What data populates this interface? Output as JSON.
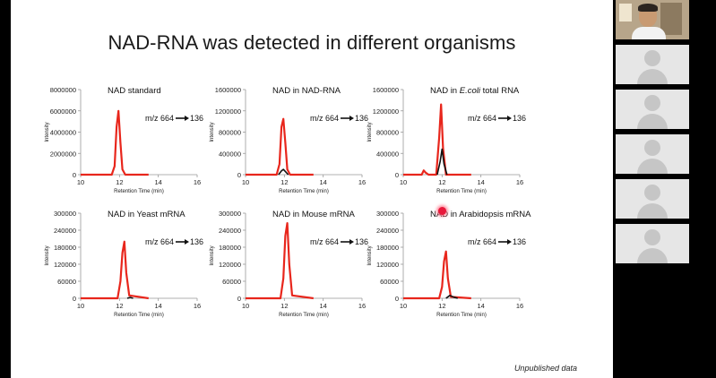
{
  "slide": {
    "title": "NAD-RNA was detected in different organisms",
    "footnote": "Unpublished data",
    "transition_label": "m/z 664",
    "transition_product": "136",
    "x_axis_label": "Retention Time (min)",
    "y_axis_label": "Intensity"
  },
  "chart_data": [
    {
      "type": "line",
      "title": "NAD standard",
      "xlabel": "Retention Time (min)",
      "ylabel": "Intensity",
      "xlim": [
        10,
        16
      ],
      "x_ticks": [
        "10",
        "12",
        "14",
        "16"
      ],
      "ylim": [
        0,
        8000000
      ],
      "y_ticks": [
        "0",
        "2000000",
        "4000000",
        "6000000",
        "8000000"
      ],
      "series": [
        {
          "name": "NAD (red)",
          "color": "#e8261c",
          "x": [
            10.0,
            11.6,
            11.75,
            11.85,
            11.95,
            12.05,
            12.15,
            12.3,
            13.5
          ],
          "y": [
            0,
            0,
            800000,
            4500000,
            6000000,
            3000000,
            500000,
            0,
            0
          ]
        }
      ]
    },
    {
      "type": "line",
      "title": "NAD in NAD-RNA",
      "xlabel": "Retention Time (min)",
      "ylabel": "Intensity",
      "xlim": [
        10,
        16
      ],
      "x_ticks": [
        "10",
        "12",
        "14",
        "16"
      ],
      "ylim": [
        0,
        1600000
      ],
      "y_ticks": [
        "0",
        "400000",
        "800000",
        "1200000",
        "1600000"
      ],
      "series": [
        {
          "name": "NAD (red)",
          "color": "#e8261c",
          "x": [
            10.0,
            11.6,
            11.75,
            11.85,
            11.95,
            12.05,
            12.15,
            12.3,
            13.5
          ],
          "y": [
            0,
            0,
            200000,
            900000,
            1050000,
            600000,
            100000,
            0,
            0
          ]
        },
        {
          "name": "Background (black)",
          "color": "#111111",
          "x": [
            11.7,
            11.85,
            11.95,
            12.05,
            12.2
          ],
          "y": [
            0,
            70000,
            100000,
            60000,
            0
          ]
        }
      ]
    },
    {
      "type": "line",
      "title_prefix": "NAD in ",
      "title_italic": "E.coli",
      "title_suffix": " total RNA",
      "xlabel": "Retention Time (min)",
      "ylabel": "Intensity",
      "xlim": [
        10,
        16
      ],
      "x_ticks": [
        "10",
        "12",
        "14",
        "16"
      ],
      "ylim": [
        0,
        1600000
      ],
      "y_ticks": [
        "0",
        "400000",
        "800000",
        "1200000",
        "1600000"
      ],
      "series": [
        {
          "name": "NAD (red)",
          "color": "#e8261c",
          "x": [
            10.0,
            10.95,
            11.05,
            11.15,
            11.3,
            11.7,
            11.85,
            11.95,
            12.05,
            12.2,
            13.5
          ],
          "y": [
            0,
            0,
            80000,
            40000,
            0,
            0,
            700000,
            1320000,
            500000,
            0,
            0
          ]
        },
        {
          "name": "Background (black)",
          "color": "#111111",
          "x": [
            11.75,
            11.9,
            12.0,
            12.1,
            12.25
          ],
          "y": [
            0,
            250000,
            480000,
            200000,
            0
          ]
        }
      ]
    },
    {
      "type": "line",
      "title": "NAD in Yeast mRNA",
      "xlabel": "Retention Time (min)",
      "ylabel": "Intensity",
      "xlim": [
        10,
        16
      ],
      "x_ticks": [
        "10",
        "12",
        "14",
        "16"
      ],
      "ylim": [
        0,
        300000
      ],
      "y_ticks": [
        "0",
        "60000",
        "120000",
        "180000",
        "240000",
        "300000"
      ],
      "series": [
        {
          "name": "NAD (red)",
          "color": "#e8261c",
          "x": [
            10.0,
            11.9,
            12.05,
            12.15,
            12.25,
            12.35,
            12.5,
            13.5
          ],
          "y": [
            0,
            0,
            60000,
            160000,
            200000,
            90000,
            10000,
            0
          ]
        },
        {
          "name": "Background (black)",
          "color": "#111111",
          "x": [
            12.4,
            12.55,
            12.7
          ],
          "y": [
            0,
            3000,
            0
          ]
        }
      ]
    },
    {
      "type": "line",
      "title": "NAD in Mouse mRNA",
      "xlabel": "Retention Time (min)",
      "ylabel": "Intensity",
      "xlim": [
        10,
        16
      ],
      "x_ticks": [
        "10",
        "12",
        "14",
        "16"
      ],
      "ylim": [
        0,
        300000
      ],
      "y_ticks": [
        "0",
        "60000",
        "120000",
        "180000",
        "240000",
        "300000"
      ],
      "series": [
        {
          "name": "NAD (red)",
          "color": "#e8261c",
          "x": [
            10.0,
            11.8,
            11.95,
            12.05,
            12.15,
            12.25,
            12.4,
            13.5
          ],
          "y": [
            0,
            0,
            70000,
            220000,
            265000,
            120000,
            10000,
            0
          ]
        }
      ]
    },
    {
      "type": "line",
      "title": "NAD in Arabidopsis mRNA",
      "xlabel": "Retention Time (min)",
      "ylabel": "Intensity",
      "xlim": [
        10,
        16
      ],
      "x_ticks": [
        "10",
        "12",
        "14",
        "16"
      ],
      "ylim": [
        0,
        300000
      ],
      "y_ticks": [
        "0",
        "60000",
        "120000",
        "180000",
        "240000",
        "300000"
      ],
      "series": [
        {
          "name": "NAD (red)",
          "color": "#e8261c",
          "x": [
            10.0,
            11.85,
            12.0,
            12.1,
            12.2,
            12.3,
            12.45,
            13.5
          ],
          "y": [
            0,
            0,
            40000,
            130000,
            165000,
            70000,
            5000,
            0
          ]
        },
        {
          "name": "Background (black)",
          "color": "#111111",
          "x": [
            12.2,
            12.4,
            12.6,
            12.8
          ],
          "y": [
            0,
            10000,
            4000,
            0
          ]
        }
      ]
    }
  ],
  "participants": [
    {
      "label": "",
      "type": "video"
    },
    {
      "label": "",
      "type": "avatar"
    },
    {
      "label": "",
      "type": "avatar"
    },
    {
      "label": "",
      "type": "avatar"
    },
    {
      "label": "",
      "type": "avatar"
    },
    {
      "label": "",
      "type": "avatar"
    }
  ],
  "colors": {
    "nad_trace": "#e8261c",
    "background_trace": "#111111",
    "axis": "#999999"
  }
}
